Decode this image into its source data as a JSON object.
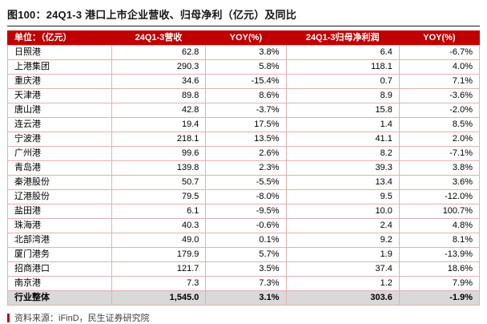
{
  "title": "图100：24Q1-3 港口上市企业营收、归母净利（亿元）及同比",
  "source": "资料来源：iFinD，民生证券研究院",
  "colors": {
    "header_bg": "#c00000",
    "header_text": "#ffffff",
    "total_bg": "#d9d9d9",
    "border": "#e3b0b0",
    "accent": "#c00000"
  },
  "chart_data": {
    "type": "table",
    "title": "24Q1-3 港口上市企业营收、归母净利（亿元）及同比",
    "columns": [
      "单位：（亿元）",
      "24Q1-3营收",
      "YOY(%)",
      "24Q1-3归母净利润",
      "YOY(%)"
    ],
    "rows": [
      [
        "日照港",
        "62.8",
        "3.8%",
        "6.4",
        "-6.7%"
      ],
      [
        "上港集团",
        "290.3",
        "5.8%",
        "118.1",
        "4.0%"
      ],
      [
        "重庆港",
        "34.6",
        "-15.4%",
        "0.7",
        "7.1%"
      ],
      [
        "天津港",
        "89.8",
        "8.6%",
        "8.9",
        "-3.6%"
      ],
      [
        "唐山港",
        "42.8",
        "-3.7%",
        "15.8",
        "-2.0%"
      ],
      [
        "连云港",
        "19.4",
        "17.5%",
        "1.4",
        "8.5%"
      ],
      [
        "宁波港",
        "218.1",
        "13.5%",
        "41.1",
        "2.0%"
      ],
      [
        "广州港",
        "99.6",
        "2.6%",
        "8.2",
        "-7.1%"
      ],
      [
        "青岛港",
        "139.8",
        "2.3%",
        "39.3",
        "3.8%"
      ],
      [
        "秦港股份",
        "50.7",
        "-5.5%",
        "13.4",
        "3.6%"
      ],
      [
        "辽港股份",
        "79.5",
        "-8.0%",
        "9.5",
        "-12.0%"
      ],
      [
        "盐田港",
        "6.1",
        "-9.5%",
        "10.0",
        "100.7%"
      ],
      [
        "珠海港",
        "40.3",
        "-0.6%",
        "2.4",
        "4.8%"
      ],
      [
        "北部湾港",
        "49.0",
        "0.1%",
        "9.2",
        "8.1%"
      ],
      [
        "厦门港务",
        "179.9",
        "5.7%",
        "1.9",
        "-13.9%"
      ],
      [
        "招商港口",
        "121.7",
        "3.5%",
        "37.4",
        "18.6%"
      ],
      [
        "南京港",
        "7.3",
        "7.3%",
        "1.2",
        "7.9%"
      ]
    ],
    "total_row": [
      "行业整体",
      "1,545.0",
      "3.1%",
      "303.6",
      "-1.9%"
    ]
  }
}
